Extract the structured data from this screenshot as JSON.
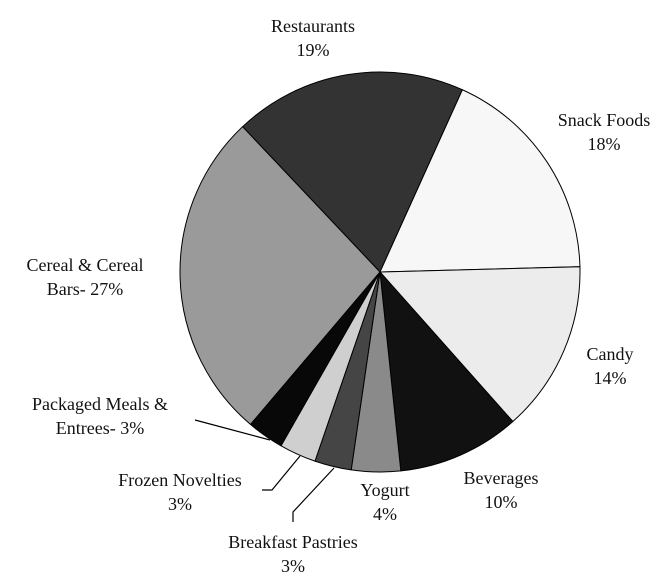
{
  "chart_data": {
    "type": "pie",
    "categories": [
      "Restaurants",
      "Snack Foods",
      "Candy",
      "Beverages",
      "Yogurt",
      "Breakfast Pastries",
      "Frozen Novelties",
      "Packaged Meals & Entrees-",
      "Cereal & Cereal Bars-"
    ],
    "values": [
      19,
      18,
      14,
      10,
      4,
      3,
      3,
      3,
      27
    ],
    "value_labels": [
      "19%",
      "18%",
      "14%",
      "10%",
      "4%",
      "3%",
      "3%",
      "3%",
      "27%"
    ],
    "colors": [
      "#333333",
      "#f7f7f7",
      "#ececec",
      "#111111",
      "#8a8a8a",
      "#454545",
      "#cfcfcf",
      "#080808",
      "#9a9a9a"
    ]
  }
}
